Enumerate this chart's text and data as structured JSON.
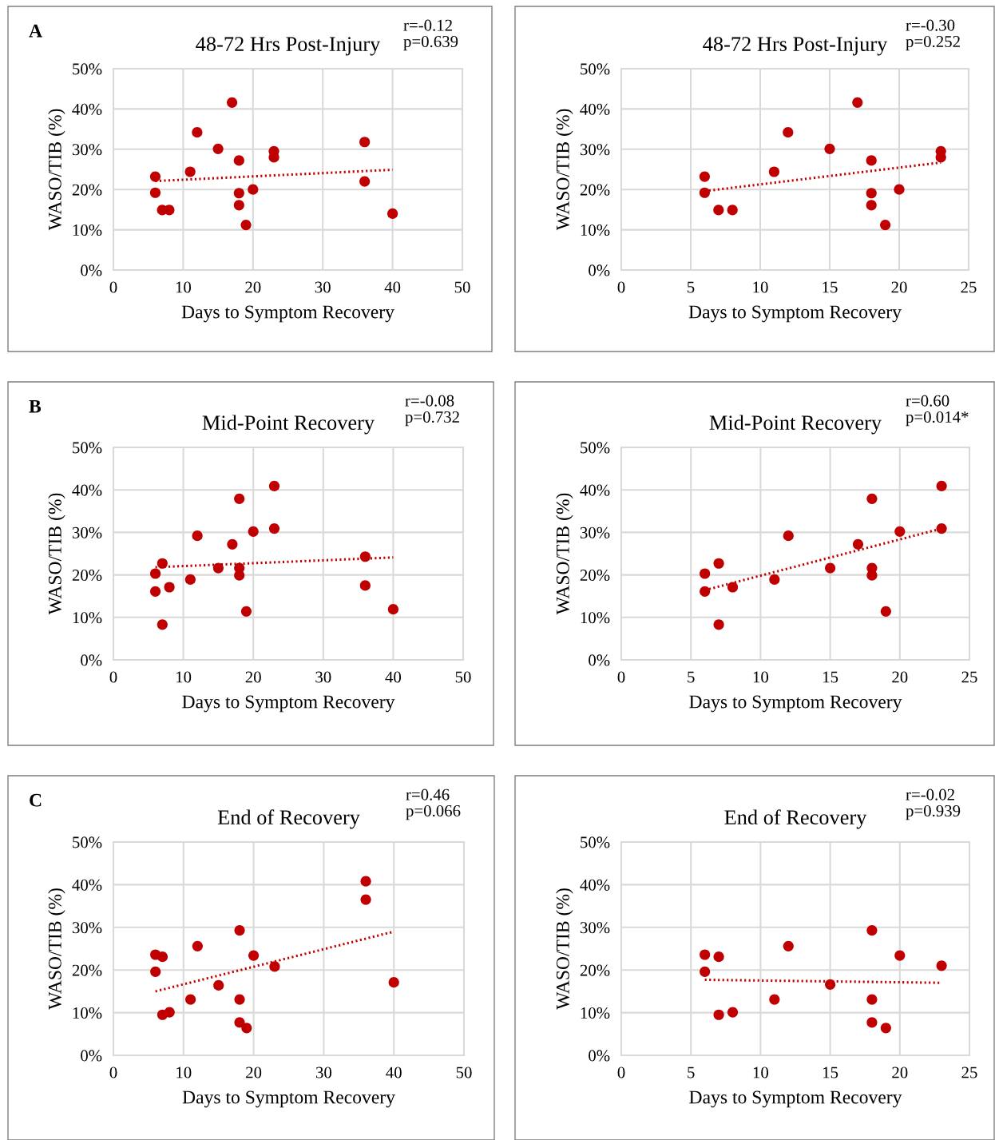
{
  "chart_data": [
    {
      "type": "scatter",
      "title": "48-72 Hrs Post-Injury",
      "xlabel": "Days to Symptom Recovery",
      "ylabel": "WASO/TIB (%)",
      "annotations": [
        "A",
        "r=-0.12\np=0.639"
      ],
      "xlim": [
        0,
        50
      ],
      "xticks": [
        0,
        10,
        20,
        30,
        40,
        50
      ],
      "ylim": [
        0,
        50
      ],
      "yticks": [
        {
          "value": 0,
          "label": "0%"
        },
        {
          "value": 10,
          "label": "10%"
        },
        {
          "value": 20,
          "label": "20%"
        },
        {
          "value": 30,
          "label": "30%"
        },
        {
          "value": 40,
          "label": "40%"
        },
        {
          "value": 50,
          "label": "50%"
        }
      ],
      "grid": true,
      "series": [
        {
          "marker": "circle",
          "color": "#c00000",
          "x": [
            6,
            6,
            7,
            8,
            11,
            12,
            15,
            17,
            18,
            18,
            18,
            19,
            20,
            23,
            23,
            36,
            36,
            40
          ],
          "values": [
            23.2,
            19.2,
            14.9,
            14.9,
            24.4,
            34.2,
            30.1,
            41.6,
            27.2,
            19.1,
            16.1,
            11.2,
            20.0,
            29.5,
            28.0,
            31.8,
            22.0,
            14.0
          ]
        },
        {
          "type": "line",
          "color": "#c00000",
          "line_style": "dotted",
          "x": [
            6,
            40
          ],
          "values": [
            22.1,
            24.9
          ]
        }
      ]
    },
    {
      "type": "scatter",
      "title": "48-72 Hrs Post-Injury",
      "xlabel": "Days to Symptom Recovery",
      "ylabel": "WASO/TIB (%)",
      "annotations": [
        "r=-0.30\np=0.252"
      ],
      "xlim": [
        0,
        25
      ],
      "xticks": [
        0,
        5,
        10,
        15,
        20,
        25
      ],
      "ylim": [
        0,
        50
      ],
      "yticks": [
        {
          "value": 0,
          "label": "0%"
        },
        {
          "value": 10,
          "label": "10%"
        },
        {
          "value": 20,
          "label": "20%"
        },
        {
          "value": 30,
          "label": "30%"
        },
        {
          "value": 40,
          "label": "40%"
        },
        {
          "value": 50,
          "label": "50%"
        }
      ],
      "grid": true,
      "series": [
        {
          "marker": "circle",
          "color": "#c00000",
          "x": [
            6,
            6,
            7,
            8,
            11,
            12,
            15,
            17,
            18,
            18,
            18,
            19,
            20,
            23,
            23
          ],
          "values": [
            23.2,
            19.2,
            14.9,
            14.9,
            24.4,
            34.2,
            30.1,
            41.6,
            27.2,
            19.1,
            16.1,
            11.2,
            20.0,
            29.5,
            28.0
          ]
        },
        {
          "type": "line",
          "color": "#c00000",
          "line_style": "dotted",
          "x": [
            6,
            23
          ],
          "values": [
            19.6,
            26.7
          ]
        }
      ]
    },
    {
      "type": "scatter",
      "title": "Mid-Point Recovery",
      "xlabel": "Days to Symptom Recovery",
      "ylabel": "WASO/TIB (%)",
      "annotations": [
        "B",
        "r=-0.08\np=0.732"
      ],
      "xlim": [
        0,
        50
      ],
      "xticks": [
        0,
        10,
        20,
        30,
        40,
        50
      ],
      "ylim": [
        0,
        50
      ],
      "yticks": [
        {
          "value": 0,
          "label": "0%"
        },
        {
          "value": 10,
          "label": "10%"
        },
        {
          "value": 20,
          "label": "20%"
        },
        {
          "value": 30,
          "label": "30%"
        },
        {
          "value": 40,
          "label": "40%"
        },
        {
          "value": 50,
          "label": "50%"
        }
      ],
      "grid": true,
      "series": [
        {
          "marker": "circle",
          "color": "#c00000",
          "x": [
            6,
            6,
            7,
            7,
            8,
            11,
            12,
            15,
            17,
            18,
            18,
            18,
            19,
            20,
            23,
            23,
            36,
            36,
            40
          ],
          "values": [
            20.3,
            16.1,
            22.7,
            8.3,
            17.1,
            18.9,
            29.2,
            21.6,
            27.2,
            37.9,
            21.6,
            19.9,
            11.4,
            30.2,
            40.9,
            30.9,
            24.3,
            17.5,
            11.9
          ]
        },
        {
          "type": "line",
          "color": "#c00000",
          "line_style": "dotted",
          "x": [
            6,
            40
          ],
          "values": [
            21.8,
            24.1
          ]
        }
      ]
    },
    {
      "type": "scatter",
      "title": "Mid-Point Recovery",
      "xlabel": "Days to Symptom Recovery",
      "ylabel": "WASO/TIB (%)",
      "annotations": [
        "r=0.60\np=0.014*"
      ],
      "xlim": [
        0,
        25
      ],
      "xticks": [
        0,
        5,
        10,
        15,
        20,
        25
      ],
      "ylim": [
        0,
        50
      ],
      "yticks": [
        {
          "value": 0,
          "label": "0%"
        },
        {
          "value": 10,
          "label": "10%"
        },
        {
          "value": 20,
          "label": "20%"
        },
        {
          "value": 30,
          "label": "30%"
        },
        {
          "value": 40,
          "label": "40%"
        },
        {
          "value": 50,
          "label": "50%"
        }
      ],
      "grid": true,
      "series": [
        {
          "marker": "circle",
          "color": "#c00000",
          "x": [
            6,
            6,
            7,
            7,
            8,
            11,
            12,
            15,
            17,
            18,
            18,
            18,
            19,
            20,
            23,
            23
          ],
          "values": [
            20.3,
            16.1,
            22.7,
            8.3,
            17.1,
            18.9,
            29.2,
            21.6,
            27.2,
            37.9,
            21.6,
            19.9,
            11.4,
            30.2,
            40.9,
            30.9
          ]
        },
        {
          "type": "line",
          "color": "#c00000",
          "line_style": "dotted",
          "x": [
            6,
            23
          ],
          "values": [
            16.4,
            30.9
          ]
        }
      ]
    },
    {
      "type": "scatter",
      "title": "End of Recovery",
      "xlabel": "Days to Symptom Recovery",
      "ylabel": "WASO/TIB (%)",
      "annotations": [
        "C",
        "r=0.46\np=0.066"
      ],
      "xlim": [
        0,
        50
      ],
      "xticks": [
        0,
        10,
        20,
        30,
        40,
        50
      ],
      "ylim": [
        0,
        50
      ],
      "yticks": [
        {
          "value": 0,
          "label": "0%"
        },
        {
          "value": 10,
          "label": "10%"
        },
        {
          "value": 20,
          "label": "20%"
        },
        {
          "value": 30,
          "label": "30%"
        },
        {
          "value": 40,
          "label": "40%"
        },
        {
          "value": 50,
          "label": "50%"
        }
      ],
      "grid": true,
      "series": [
        {
          "marker": "circle",
          "color": "#c00000",
          "x": [
            6,
            7,
            6,
            7,
            8,
            11,
            12,
            15,
            18,
            18,
            18,
            19,
            20,
            23,
            36,
            36,
            40
          ],
          "values": [
            23.6,
            23.1,
            19.6,
            9.5,
            10.1,
            13.1,
            25.6,
            16.4,
            29.3,
            13.1,
            7.7,
            6.4,
            23.4,
            20.8,
            40.8,
            36.5,
            17.1
          ]
        },
        {
          "type": "line",
          "color": "#c00000",
          "line_style": "dotted",
          "x": [
            6,
            40
          ],
          "values": [
            15.0,
            29.0
          ]
        }
      ]
    },
    {
      "type": "scatter",
      "title": "End of Recovery",
      "xlabel": "Days to Symptom Recovery",
      "ylabel": "WASO/TIB (%)",
      "annotations": [
        "r=-0.02\np=0.939"
      ],
      "xlim": [
        0,
        25
      ],
      "xticks": [
        0,
        5,
        10,
        15,
        20,
        25
      ],
      "ylim": [
        0,
        50
      ],
      "yticks": [
        {
          "value": 0,
          "label": "0%"
        },
        {
          "value": 10,
          "label": "10%"
        },
        {
          "value": 20,
          "label": "20%"
        },
        {
          "value": 30,
          "label": "30%"
        },
        {
          "value": 40,
          "label": "40%"
        },
        {
          "value": 50,
          "label": "50%"
        }
      ],
      "grid": true,
      "series": [
        {
          "marker": "circle",
          "color": "#c00000",
          "x": [
            6,
            7,
            6,
            7,
            8,
            11,
            12,
            15,
            18,
            18,
            18,
            19,
            20,
            23
          ],
          "values": [
            23.6,
            23.1,
            19.6,
            9.5,
            10.1,
            13.1,
            25.6,
            16.6,
            29.3,
            13.1,
            7.7,
            6.4,
            23.4,
            21.0
          ]
        },
        {
          "type": "line",
          "color": "#c00000",
          "line_style": "dotted",
          "x": [
            6,
            23
          ],
          "values": [
            17.7,
            17.0
          ]
        }
      ]
    }
  ]
}
